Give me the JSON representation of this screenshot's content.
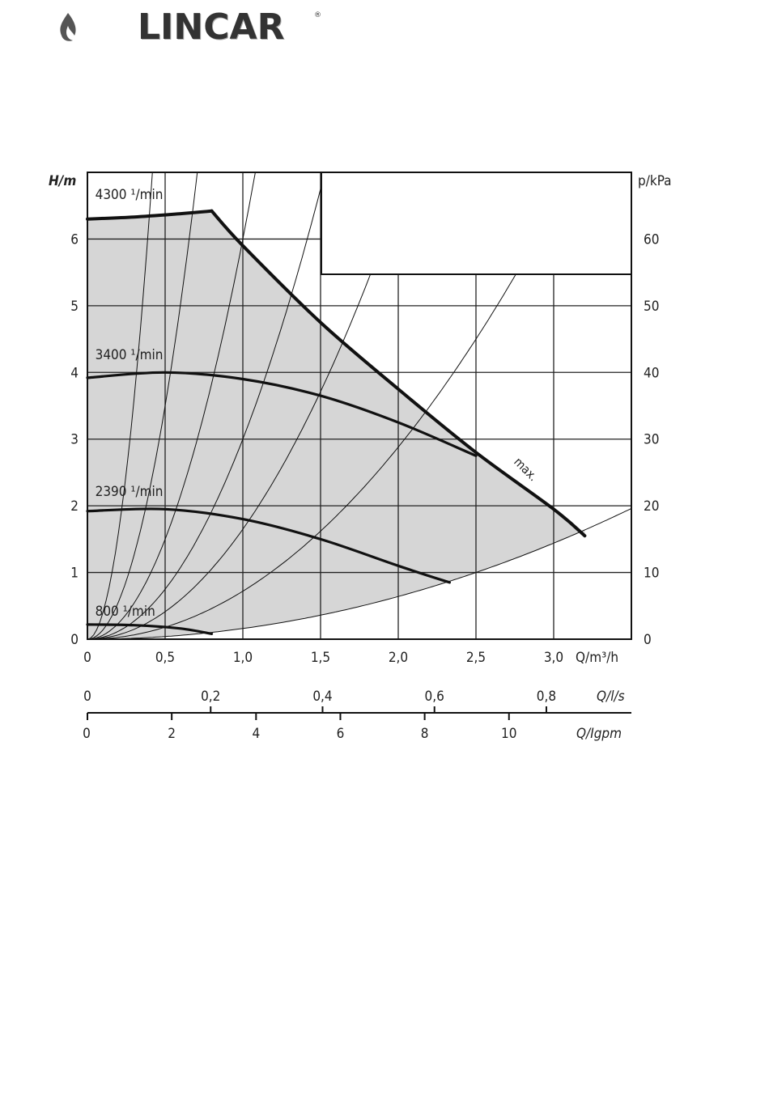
{
  "brand": {
    "name": "LINCAR",
    "reg": "®"
  },
  "chart_data": {
    "type": "line",
    "xlabel": "Q/m³/h",
    "ylabel": "H/m",
    "y2label": "p/kPa",
    "xlim": [
      0,
      3.5
    ],
    "ylim": [
      0,
      7
    ],
    "y2lim": [
      0,
      70
    ],
    "x_ticks": [
      "0",
      "0,5",
      "1,0",
      "1,5",
      "2,0",
      "2,5",
      "3,0"
    ],
    "y_ticks": [
      "0",
      "1",
      "2",
      "3",
      "4",
      "5",
      "6"
    ],
    "y2_ticks": [
      "0",
      "10",
      "20",
      "30",
      "40",
      "50",
      "60"
    ],
    "grid": true,
    "secondary_axes": [
      {
        "label": "Q/l/s",
        "ticks": [
          "0",
          "0,2",
          "0,4",
          "0,6",
          "0,8"
        ],
        "values": [
          0,
          0.2,
          0.4,
          0.6,
          0.8
        ]
      },
      {
        "label": "Q/Igpm",
        "ticks": [
          "0",
          "2",
          "4",
          "6",
          "8",
          "10"
        ],
        "values": [
          0,
          2,
          4,
          6,
          8,
          10
        ]
      }
    ],
    "series": [
      {
        "name": "4300 ¹/min",
        "x": [
          0,
          0.3,
          0.6,
          0.8
        ],
        "y": [
          6.3,
          6.33,
          6.38,
          6.42
        ]
      },
      {
        "name": "max.",
        "x": [
          0.8,
          1.0,
          1.5,
          2.0,
          2.5,
          3.0,
          3.2
        ],
        "y": [
          6.42,
          5.9,
          4.75,
          3.75,
          2.8,
          1.95,
          1.55
        ]
      },
      {
        "name": "3400 ¹/min",
        "x": [
          0,
          0.5,
          1.0,
          1.5,
          2.0,
          2.5
        ],
        "y": [
          3.92,
          4.0,
          3.9,
          3.65,
          3.25,
          2.75
        ]
      },
      {
        "name": "2390 ¹/min",
        "x": [
          0,
          0.5,
          1.0,
          1.5,
          2.0,
          2.33
        ],
        "y": [
          1.92,
          1.95,
          1.8,
          1.5,
          1.1,
          0.85
        ]
      },
      {
        "name": "800 ¹/min",
        "x": [
          0,
          0.3,
          0.6,
          0.8
        ],
        "y": [
          0.22,
          0.21,
          0.16,
          0.08
        ]
      }
    ],
    "system_curves_k": [
      40,
      14,
      6,
      3,
      1.65,
      0.72,
      0.16
    ]
  }
}
